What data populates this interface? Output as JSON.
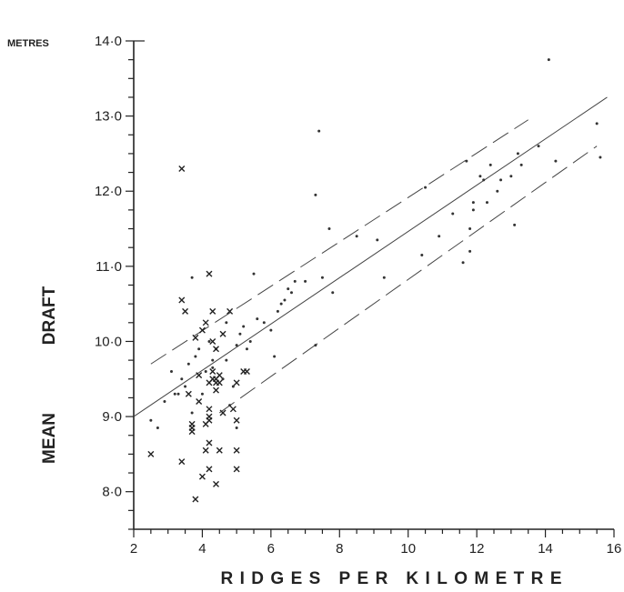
{
  "chart_data": {
    "type": "scatter",
    "title": "",
    "xlabel": "RIDGES PER KILOMETRE",
    "ylabel_words": [
      "MEAN",
      "DRAFT"
    ],
    "y_unit": "METRES",
    "xlim": [
      2,
      16
    ],
    "ylim": [
      7.5,
      14.0
    ],
    "x_ticks": [
      2,
      4,
      6,
      8,
      10,
      12,
      14,
      16
    ],
    "x_tick_labels": [
      "2",
      "4",
      "6",
      "8",
      "10",
      "12",
      "14",
      "16"
    ],
    "y_ticks": [
      8.0,
      9.0,
      10.0,
      11.0,
      12.0,
      13.0,
      14.0
    ],
    "y_tick_labels": [
      "8·0",
      "9·0",
      "10·0",
      "11·0",
      "12·0",
      "13·0",
      "14·0"
    ],
    "grid": false,
    "series": [
      {
        "marker": "dot",
        "x": [
          2.5,
          2.7,
          2.9,
          3.1,
          3.3,
          3.4,
          3.5,
          3.6,
          3.7,
          3.8,
          3.9,
          4.0,
          4.1,
          4.2,
          4.3,
          4.4,
          4.6,
          4.7,
          4.8,
          4.9,
          5.0,
          5.1,
          5.2,
          5.3,
          5.4,
          5.5,
          5.6,
          5.8,
          6.0,
          6.1,
          6.2,
          6.3,
          6.4,
          6.5,
          6.6,
          6.7,
          7.0,
          7.3,
          7.3,
          7.4,
          7.5,
          7.7,
          7.8,
          8.5,
          9.1,
          9.3,
          10.4,
          10.5,
          10.9,
          11.3,
          11.6,
          11.7,
          11.8,
          11.8,
          11.9,
          11.9,
          12.1,
          12.2,
          12.3,
          12.4,
          12.6,
          12.7,
          13.0,
          13.1,
          13.2,
          13.3,
          13.8,
          14.1,
          14.3,
          15.5,
          15.6,
          3.7,
          4.3,
          4.7,
          5.0,
          3.2
        ],
        "y": [
          8.95,
          8.85,
          9.2,
          9.6,
          9.3,
          9.5,
          9.4,
          9.7,
          10.85,
          9.8,
          9.9,
          9.3,
          9.6,
          10.0,
          9.75,
          9.9,
          9.5,
          10.25,
          9.15,
          9.4,
          9.95,
          10.1,
          10.2,
          9.9,
          10.0,
          10.9,
          10.3,
          10.25,
          10.15,
          9.8,
          10.4,
          10.5,
          10.55,
          10.7,
          10.65,
          10.8,
          10.8,
          9.95,
          11.95,
          12.8,
          10.85,
          11.5,
          10.65,
          11.4,
          11.35,
          10.85,
          11.15,
          12.05,
          11.4,
          11.7,
          11.05,
          12.4,
          11.2,
          11.5,
          11.75,
          11.85,
          12.2,
          12.15,
          11.85,
          12.35,
          12.0,
          12.15,
          12.2,
          11.55,
          12.5,
          12.35,
          12.6,
          13.75,
          12.4,
          12.9,
          12.45,
          9.05,
          9.65,
          9.75,
          8.85,
          9.3
        ]
      },
      {
        "marker": "cross",
        "x": [
          2.5,
          3.4,
          3.4,
          3.4,
          3.5,
          3.6,
          3.7,
          3.7,
          3.7,
          3.8,
          3.8,
          3.9,
          3.9,
          4.0,
          4.0,
          4.1,
          4.1,
          4.1,
          4.2,
          4.2,
          4.2,
          4.2,
          4.2,
          4.2,
          4.2,
          4.3,
          4.3,
          4.3,
          4.3,
          4.4,
          4.4,
          4.4,
          4.4,
          4.4,
          4.5,
          4.5,
          4.5,
          4.6,
          4.6,
          4.8,
          4.9,
          5.0,
          5.0,
          5.0,
          5.0,
          5.2,
          5.3
        ],
        "y": [
          8.5,
          8.4,
          10.55,
          12.3,
          10.4,
          9.3,
          8.9,
          8.85,
          8.8,
          7.9,
          10.05,
          9.55,
          9.2,
          10.15,
          8.2,
          8.9,
          8.55,
          10.25,
          9.0,
          8.95,
          8.65,
          8.3,
          9.1,
          9.45,
          10.9,
          9.6,
          9.5,
          10.0,
          10.4,
          9.5,
          9.45,
          9.9,
          9.35,
          8.1,
          9.45,
          9.55,
          8.55,
          10.1,
          9.05,
          10.4,
          9.1,
          9.45,
          8.95,
          8.55,
          8.3,
          9.6,
          9.6
        ]
      }
    ],
    "regression_line": {
      "x": [
        2,
        15.8
      ],
      "y": [
        9.0,
        13.25
      ]
    },
    "upper_bound_line": {
      "x": [
        2.5,
        13.5
      ],
      "y": [
        9.7,
        12.95
      ]
    },
    "lower_bound_line": {
      "x": [
        4.5,
        15.5
      ],
      "y": [
        9.05,
        12.6
      ]
    }
  }
}
